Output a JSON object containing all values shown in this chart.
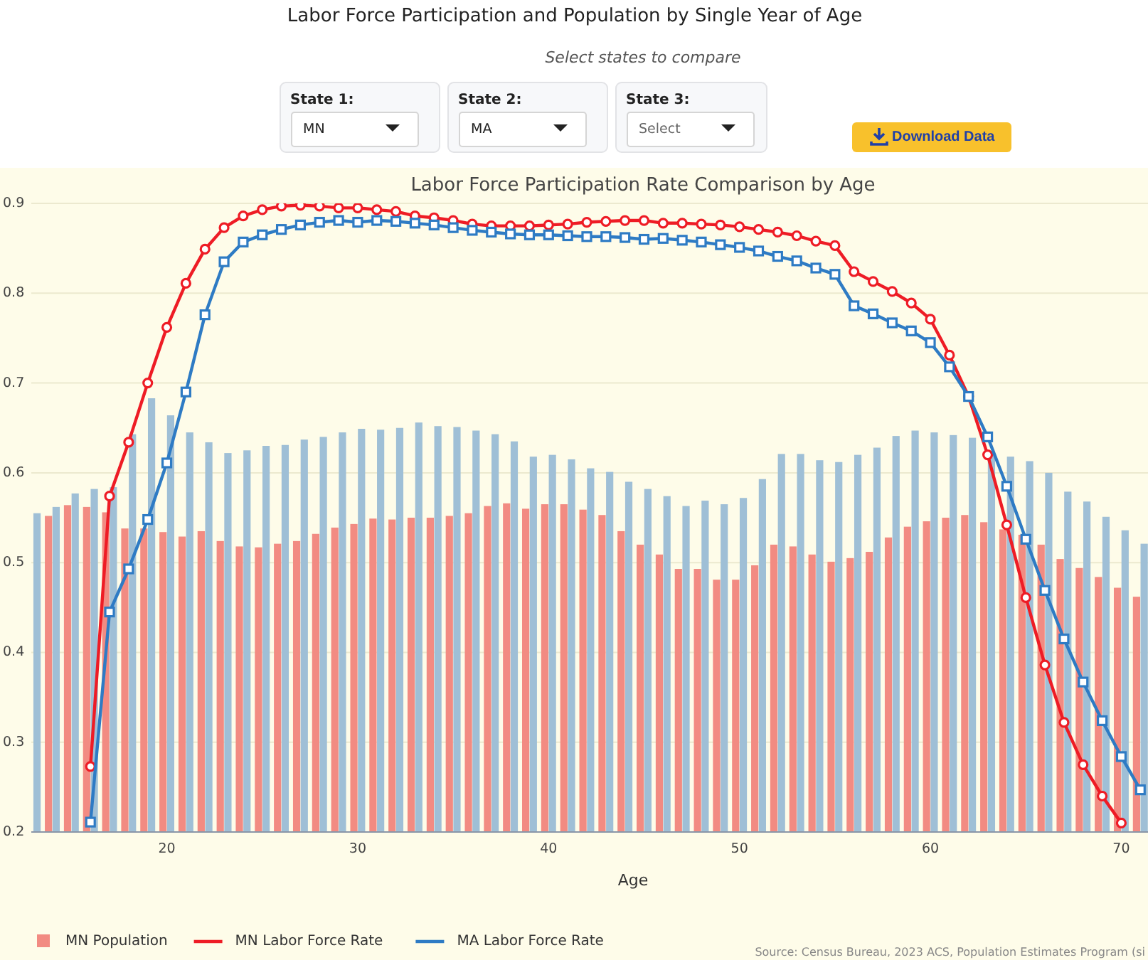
{
  "chart_data": {
    "type": "bar",
    "title": "Labor Force Participation Rate Comparison by Age",
    "xlabel": "Age",
    "xlim": [
      12.9,
      71.4
    ],
    "xticks": [
      20,
      30,
      40,
      50,
      60,
      70
    ],
    "ylim": [
      0.2,
      0.9
    ],
    "yticks": [
      0.2,
      0.3,
      0.4,
      0.5,
      0.6,
      0.7,
      0.8,
      0.9
    ],
    "grid": "y",
    "legend": "bottom left",
    "annotations": [
      "Labor Force Participation and Population by Single Year of Age",
      "Select states to compare",
      "State 1:",
      "MN",
      "State 2:",
      "MA",
      "State 3:",
      "Select",
      "Download Data",
      "Source: Census Bureau, 2023 ACS, Population Estimates Program (si"
    ],
    "series": [
      {
        "name": "MN Population",
        "color": "#f28b82",
        "x": [
          14,
          15,
          16,
          17,
          18,
          19,
          20,
          21,
          22,
          23,
          24,
          25,
          26,
          27,
          28,
          29,
          30,
          31,
          32,
          33,
          34,
          35,
          36,
          37,
          38,
          39,
          40,
          41,
          42,
          43,
          44,
          45,
          46,
          47,
          48,
          49,
          50,
          51,
          52,
          53,
          54,
          55,
          56,
          57,
          58,
          59,
          60,
          61,
          62,
          63,
          64,
          65,
          66,
          67,
          68,
          69,
          70,
          71
        ],
        "values": [
          0.552,
          0.564,
          0.562,
          0.556,
          0.538,
          0.538,
          0.534,
          0.529,
          0.535,
          0.524,
          0.518,
          0.517,
          0.521,
          0.524,
          0.532,
          0.539,
          0.543,
          0.549,
          0.548,
          0.55,
          0.55,
          0.552,
          0.555,
          0.563,
          0.566,
          0.56,
          0.565,
          0.565,
          0.559,
          0.553,
          0.535,
          0.52,
          0.509,
          0.493,
          0.493,
          0.481,
          0.481,
          0.497,
          0.52,
          0.518,
          0.509,
          0.501,
          0.505,
          0.512,
          0.528,
          0.54,
          0.546,
          0.55,
          0.553,
          0.545,
          0.537,
          0.531,
          0.52,
          0.504,
          0.494,
          0.484,
          0.472,
          0.462
        ]
      },
      {
        "color": "#9fbfd6",
        "x": [
          13,
          14,
          15,
          16,
          17,
          18,
          19,
          20,
          21,
          22,
          23,
          24,
          25,
          26,
          27,
          28,
          29,
          30,
          31,
          32,
          33,
          34,
          35,
          36,
          37,
          38,
          39,
          40,
          41,
          42,
          43,
          44,
          45,
          46,
          47,
          48,
          49,
          50,
          51,
          52,
          53,
          54,
          55,
          56,
          57,
          58,
          59,
          60,
          61,
          62,
          63,
          64,
          65,
          66,
          67,
          68,
          69,
          70,
          71
        ],
        "values": [
          0.555,
          0.562,
          0.577,
          0.582,
          0.584,
          0.643,
          0.683,
          0.664,
          0.645,
          0.634,
          0.622,
          0.625,
          0.63,
          0.631,
          0.637,
          0.64,
          0.645,
          0.649,
          0.648,
          0.65,
          0.656,
          0.652,
          0.651,
          0.647,
          0.643,
          0.635,
          0.618,
          0.62,
          0.615,
          0.605,
          0.601,
          0.59,
          0.582,
          0.574,
          0.563,
          0.569,
          0.565,
          0.572,
          0.593,
          0.621,
          0.621,
          0.614,
          0.612,
          0.62,
          0.628,
          0.641,
          0.647,
          0.645,
          0.642,
          0.639,
          0.62,
          0.618,
          0.613,
          0.6,
          0.579,
          0.568,
          0.551,
          0.536,
          0.521
        ]
      },
      {
        "type": "line",
        "name": "MN Labor Force Rate",
        "color": "#ee1c25",
        "marker": "circle",
        "x": [
          16,
          17,
          18,
          19,
          20,
          21,
          22,
          23,
          24,
          25,
          26,
          27,
          28,
          29,
          30,
          31,
          32,
          33,
          34,
          35,
          36,
          37,
          38,
          39,
          40,
          41,
          42,
          43,
          44,
          45,
          46,
          47,
          48,
          49,
          50,
          51,
          52,
          53,
          54,
          55,
          56,
          57,
          58,
          59,
          60,
          61,
          62,
          63,
          64,
          65,
          66,
          67,
          68,
          69,
          70
        ],
        "values": [
          0.273,
          0.574,
          0.634,
          0.7,
          0.762,
          0.811,
          0.849,
          0.873,
          0.886,
          0.893,
          0.897,
          0.898,
          0.897,
          0.895,
          0.895,
          0.893,
          0.891,
          0.886,
          0.884,
          0.881,
          0.877,
          0.875,
          0.875,
          0.875,
          0.876,
          0.877,
          0.879,
          0.88,
          0.881,
          0.881,
          0.878,
          0.878,
          0.877,
          0.876,
          0.874,
          0.871,
          0.868,
          0.864,
          0.858,
          0.853,
          0.824,
          0.813,
          0.802,
          0.789,
          0.771,
          0.731,
          0.685,
          0.62,
          0.542,
          0.461,
          0.386,
          0.322,
          0.275,
          0.24,
          0.21
        ]
      },
      {
        "type": "line",
        "name": "MA Labor Force Rate",
        "color": "#2e7bc4",
        "marker": "square",
        "x": [
          16,
          17,
          18,
          19,
          20,
          21,
          22,
          23,
          24,
          25,
          26,
          27,
          28,
          29,
          30,
          31,
          32,
          33,
          34,
          35,
          36,
          37,
          38,
          39,
          40,
          41,
          42,
          43,
          44,
          45,
          46,
          47,
          48,
          49,
          50,
          51,
          52,
          53,
          54,
          55,
          56,
          57,
          58,
          59,
          60,
          61,
          62,
          63,
          64,
          65,
          66,
          67,
          68,
          69,
          70,
          71
        ],
        "values": [
          0.211,
          0.445,
          0.493,
          0.548,
          0.611,
          0.69,
          0.776,
          0.835,
          0.857,
          0.865,
          0.871,
          0.876,
          0.879,
          0.881,
          0.879,
          0.881,
          0.88,
          0.878,
          0.876,
          0.873,
          0.87,
          0.868,
          0.866,
          0.865,
          0.865,
          0.864,
          0.863,
          0.863,
          0.862,
          0.86,
          0.861,
          0.859,
          0.857,
          0.854,
          0.851,
          0.847,
          0.841,
          0.836,
          0.828,
          0.821,
          0.786,
          0.777,
          0.767,
          0.758,
          0.745,
          0.718,
          0.685,
          0.64,
          0.585,
          0.526,
          0.469,
          0.415,
          0.367,
          0.324,
          0.284,
          0.247
        ]
      }
    ]
  }
}
